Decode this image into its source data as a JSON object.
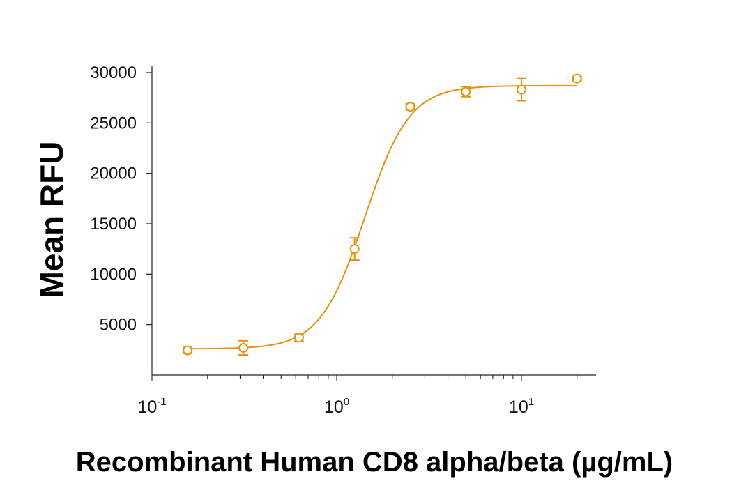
{
  "chart_data": {
    "type": "scatter",
    "xlabel": "Recombinant Human CD8 alpha/beta (µg/mL)",
    "ylabel": "Mean RFU",
    "x_scale": "log",
    "xlim": [
      0.1,
      25
    ],
    "ylim": [
      0,
      30000
    ],
    "grid": false,
    "color": "#E8900A",
    "x_ticks": [
      {
        "value": 0.1,
        "base": "10",
        "exp": "-1"
      },
      {
        "value": 1,
        "base": "10",
        "exp": "0"
      },
      {
        "value": 10,
        "base": "10",
        "exp": "1"
      }
    ],
    "y_ticks": [
      {
        "value": 5000,
        "label": "5000"
      },
      {
        "value": 10000,
        "label": "10000"
      },
      {
        "value": 15000,
        "label": "15000"
      },
      {
        "value": 20000,
        "label": "20000"
      },
      {
        "value": 25000,
        "label": "25000"
      },
      {
        "value": 30000,
        "label": "30000"
      }
    ],
    "series": [
      {
        "points": [
          {
            "x": 0.156,
            "y": 2450,
            "err": 300
          },
          {
            "x": 0.3125,
            "y": 2700,
            "err": 700
          },
          {
            "x": 0.625,
            "y": 3700,
            "err": 350
          },
          {
            "x": 1.25,
            "y": 12500,
            "err": 1100
          },
          {
            "x": 2.5,
            "y": 26600,
            "err": 300
          },
          {
            "x": 5,
            "y": 28100,
            "err": 500
          },
          {
            "x": 10,
            "y": 28300,
            "err": 1100
          },
          {
            "x": 20,
            "y": 29400,
            "err": 200
          }
        ],
        "fit": {
          "model": "4PL",
          "bottom": 2600,
          "top": 28700,
          "ec50": 1.42,
          "hill": 3.6
        }
      }
    ]
  }
}
